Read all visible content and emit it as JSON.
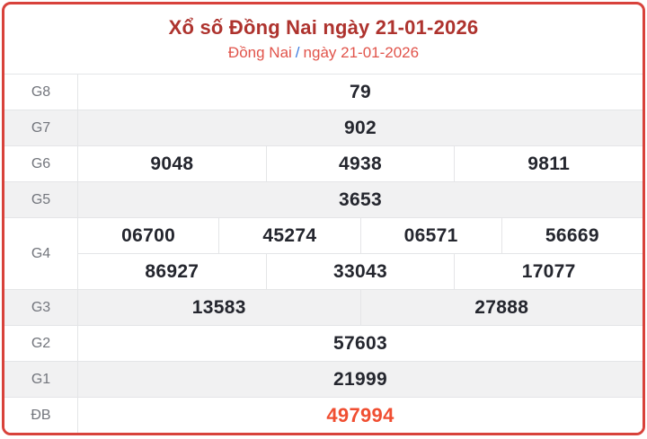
{
  "page": {
    "title": "Xổ số Đồng Nai ngày 21-01-2026",
    "breadcrumb": {
      "province": "Đồng Nai",
      "separator": "/",
      "date": "ngày 21-01-2026"
    }
  },
  "colors": {
    "card_border": "#d8423b",
    "title": "#ae332e",
    "breadcrumb_link": "#e1544b",
    "breadcrumb_separator": "#3d7ce0",
    "number": "#24262e",
    "jackpot": "#f04e31",
    "label": "#72757c",
    "row_alt_bg": "#f1f1f2",
    "grid_line": "#e4e5e7"
  },
  "results_table": {
    "rows": [
      {
        "label": "G8",
        "cells": [
          "79"
        ]
      },
      {
        "label": "G7",
        "cells": [
          "902"
        ]
      },
      {
        "label": "G6",
        "cells": [
          "9048",
          "4938",
          "9811"
        ]
      },
      {
        "label": "G5",
        "cells": [
          "3653"
        ]
      },
      {
        "label": "G4",
        "cells_row1": [
          "06700",
          "45274",
          "06571",
          "56669"
        ],
        "cells_row2": [
          "86927",
          "33043",
          "17077"
        ]
      },
      {
        "label": "G3",
        "cells": [
          "13583",
          "27888"
        ]
      },
      {
        "label": "G2",
        "cells": [
          "57603"
        ]
      },
      {
        "label": "G1",
        "cells": [
          "21999"
        ]
      },
      {
        "label": "ĐB",
        "cells": [
          "497994"
        ]
      }
    ]
  }
}
